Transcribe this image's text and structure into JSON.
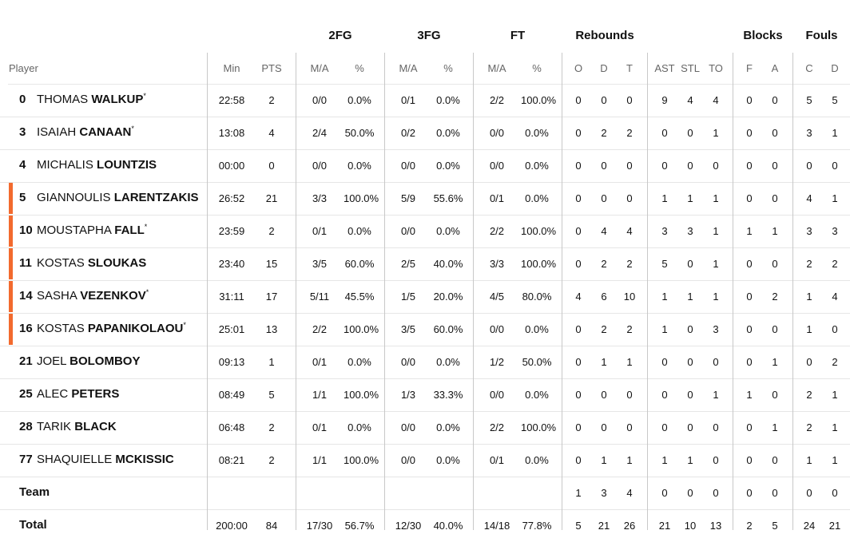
{
  "groups": {
    "fg2": "2FG",
    "fg3": "3FG",
    "ft": "FT",
    "rebounds": "Rebounds",
    "blocks": "Blocks",
    "fouls": "Fouls"
  },
  "columns": {
    "player": "Player",
    "min": "Min",
    "pts": "PTS",
    "fg2_ma": "M/A",
    "fg2_pct": "%",
    "fg3_ma": "M/A",
    "fg3_pct": "%",
    "ft_ma": "M/A",
    "ft_pct": "%",
    "reb_o": "O",
    "reb_d": "D",
    "reb_t": "T",
    "ast": "AST",
    "stl": "STL",
    "to": "TO",
    "blk_f": "F",
    "blk_a": "A",
    "foul_c": "C",
    "foul_d": "D"
  },
  "players": [
    {
      "num": "0",
      "first": "THOMAS",
      "last": "WALKUP",
      "star": "*",
      "marked": false,
      "min": "22:58",
      "pts": "2",
      "fg2_ma": "0/0",
      "fg2_pct": "0.0%",
      "fg3_ma": "0/1",
      "fg3_pct": "0.0%",
      "ft_ma": "2/2",
      "ft_pct": "100.0%",
      "reb_o": "0",
      "reb_d": "0",
      "reb_t": "0",
      "ast": "9",
      "stl": "4",
      "to": "4",
      "blk_f": "0",
      "blk_a": "0",
      "foul_c": "5",
      "foul_d": "5"
    },
    {
      "num": "3",
      "first": "ISAIAH",
      "last": "CANAAN",
      "star": "*",
      "marked": false,
      "min": "13:08",
      "pts": "4",
      "fg2_ma": "2/4",
      "fg2_pct": "50.0%",
      "fg3_ma": "0/2",
      "fg3_pct": "0.0%",
      "ft_ma": "0/0",
      "ft_pct": "0.0%",
      "reb_o": "0",
      "reb_d": "2",
      "reb_t": "2",
      "ast": "0",
      "stl": "0",
      "to": "1",
      "blk_f": "0",
      "blk_a": "0",
      "foul_c": "3",
      "foul_d": "1"
    },
    {
      "num": "4",
      "first": "MICHALIS",
      "last": "LOUNTZIS",
      "star": "",
      "marked": false,
      "min": "00:00",
      "pts": "0",
      "fg2_ma": "0/0",
      "fg2_pct": "0.0%",
      "fg3_ma": "0/0",
      "fg3_pct": "0.0%",
      "ft_ma": "0/0",
      "ft_pct": "0.0%",
      "reb_o": "0",
      "reb_d": "0",
      "reb_t": "0",
      "ast": "0",
      "stl": "0",
      "to": "0",
      "blk_f": "0",
      "blk_a": "0",
      "foul_c": "0",
      "foul_d": "0"
    },
    {
      "num": "5",
      "first": "GIANNOULIS",
      "last": "LARENTZAKIS",
      "star": "",
      "marked": true,
      "min": "26:52",
      "pts": "21",
      "fg2_ma": "3/3",
      "fg2_pct": "100.0%",
      "fg3_ma": "5/9",
      "fg3_pct": "55.6%",
      "ft_ma": "0/1",
      "ft_pct": "0.0%",
      "reb_o": "0",
      "reb_d": "0",
      "reb_t": "0",
      "ast": "1",
      "stl": "1",
      "to": "1",
      "blk_f": "0",
      "blk_a": "0",
      "foul_c": "4",
      "foul_d": "1"
    },
    {
      "num": "10",
      "first": "MOUSTAPHA",
      "last": "FALL",
      "star": "*",
      "marked": true,
      "min": "23:59",
      "pts": "2",
      "fg2_ma": "0/1",
      "fg2_pct": "0.0%",
      "fg3_ma": "0/0",
      "fg3_pct": "0.0%",
      "ft_ma": "2/2",
      "ft_pct": "100.0%",
      "reb_o": "0",
      "reb_d": "4",
      "reb_t": "4",
      "ast": "3",
      "stl": "3",
      "to": "1",
      "blk_f": "1",
      "blk_a": "1",
      "foul_c": "3",
      "foul_d": "3"
    },
    {
      "num": "11",
      "first": "KOSTAS",
      "last": "SLOUKAS",
      "star": "",
      "marked": true,
      "min": "23:40",
      "pts": "15",
      "fg2_ma": "3/5",
      "fg2_pct": "60.0%",
      "fg3_ma": "2/5",
      "fg3_pct": "40.0%",
      "ft_ma": "3/3",
      "ft_pct": "100.0%",
      "reb_o": "0",
      "reb_d": "2",
      "reb_t": "2",
      "ast": "5",
      "stl": "0",
      "to": "1",
      "blk_f": "0",
      "blk_a": "0",
      "foul_c": "2",
      "foul_d": "2"
    },
    {
      "num": "14",
      "first": "SASHA",
      "last": "VEZENKOV",
      "star": "*",
      "marked": true,
      "min": "31:11",
      "pts": "17",
      "fg2_ma": "5/11",
      "fg2_pct": "45.5%",
      "fg3_ma": "1/5",
      "fg3_pct": "20.0%",
      "ft_ma": "4/5",
      "ft_pct": "80.0%",
      "reb_o": "4",
      "reb_d": "6",
      "reb_t": "10",
      "ast": "1",
      "stl": "1",
      "to": "1",
      "blk_f": "0",
      "blk_a": "2",
      "foul_c": "1",
      "foul_d": "4"
    },
    {
      "num": "16",
      "first": "KOSTAS",
      "last": "PAPANIKOLAOU",
      "star": "*",
      "marked": true,
      "min": "25:01",
      "pts": "13",
      "fg2_ma": "2/2",
      "fg2_pct": "100.0%",
      "fg3_ma": "3/5",
      "fg3_pct": "60.0%",
      "ft_ma": "0/0",
      "ft_pct": "0.0%",
      "reb_o": "0",
      "reb_d": "2",
      "reb_t": "2",
      "ast": "1",
      "stl": "0",
      "to": "3",
      "blk_f": "0",
      "blk_a": "0",
      "foul_c": "1",
      "foul_d": "0"
    },
    {
      "num": "21",
      "first": "JOEL",
      "last": "BOLOMBOY",
      "star": "",
      "marked": false,
      "min": "09:13",
      "pts": "1",
      "fg2_ma": "0/1",
      "fg2_pct": "0.0%",
      "fg3_ma": "0/0",
      "fg3_pct": "0.0%",
      "ft_ma": "1/2",
      "ft_pct": "50.0%",
      "reb_o": "0",
      "reb_d": "1",
      "reb_t": "1",
      "ast": "0",
      "stl": "0",
      "to": "0",
      "blk_f": "0",
      "blk_a": "1",
      "foul_c": "0",
      "foul_d": "2"
    },
    {
      "num": "25",
      "first": "ALEC",
      "last": "PETERS",
      "star": "",
      "marked": false,
      "min": "08:49",
      "pts": "5",
      "fg2_ma": "1/1",
      "fg2_pct": "100.0%",
      "fg3_ma": "1/3",
      "fg3_pct": "33.3%",
      "ft_ma": "0/0",
      "ft_pct": "0.0%",
      "reb_o": "0",
      "reb_d": "0",
      "reb_t": "0",
      "ast": "0",
      "stl": "0",
      "to": "1",
      "blk_f": "1",
      "blk_a": "0",
      "foul_c": "2",
      "foul_d": "1"
    },
    {
      "num": "28",
      "first": "TARIK",
      "last": "BLACK",
      "star": "",
      "marked": false,
      "min": "06:48",
      "pts": "2",
      "fg2_ma": "0/1",
      "fg2_pct": "0.0%",
      "fg3_ma": "0/0",
      "fg3_pct": "0.0%",
      "ft_ma": "2/2",
      "ft_pct": "100.0%",
      "reb_o": "0",
      "reb_d": "0",
      "reb_t": "0",
      "ast": "0",
      "stl": "0",
      "to": "0",
      "blk_f": "0",
      "blk_a": "1",
      "foul_c": "2",
      "foul_d": "1"
    },
    {
      "num": "77",
      "first": "SHAQUIELLE",
      "last": "MCKISSIC",
      "star": "",
      "marked": false,
      "min": "08:21",
      "pts": "2",
      "fg2_ma": "1/1",
      "fg2_pct": "100.0%",
      "fg3_ma": "0/0",
      "fg3_pct": "0.0%",
      "ft_ma": "0/1",
      "ft_pct": "0.0%",
      "reb_o": "0",
      "reb_d": "1",
      "reb_t": "1",
      "ast": "1",
      "stl": "1",
      "to": "0",
      "blk_f": "0",
      "blk_a": "0",
      "foul_c": "1",
      "foul_d": "1"
    }
  ],
  "team": {
    "label": "Team",
    "reb_o": "1",
    "reb_d": "3",
    "reb_t": "4",
    "ast": "0",
    "stl": "0",
    "to": "0",
    "blk_f": "0",
    "blk_a": "0",
    "foul_c": "0",
    "foul_d": "0"
  },
  "total": {
    "label": "Total",
    "min": "200:00",
    "pts": "84",
    "fg2_ma": "17/30",
    "fg2_pct": "56.7%",
    "fg3_ma": "12/30",
    "fg3_pct": "40.0%",
    "ft_ma": "14/18",
    "ft_pct": "77.8%",
    "reb_o": "5",
    "reb_d": "21",
    "reb_t": "26",
    "ast": "21",
    "stl": "10",
    "to": "13",
    "blk_f": "2",
    "blk_a": "5",
    "foul_c": "24",
    "foul_d": "21"
  },
  "colors": {
    "accent": "#f26a2e",
    "divider": "#c8c8c8",
    "rowline": "#e6e6e6"
  }
}
